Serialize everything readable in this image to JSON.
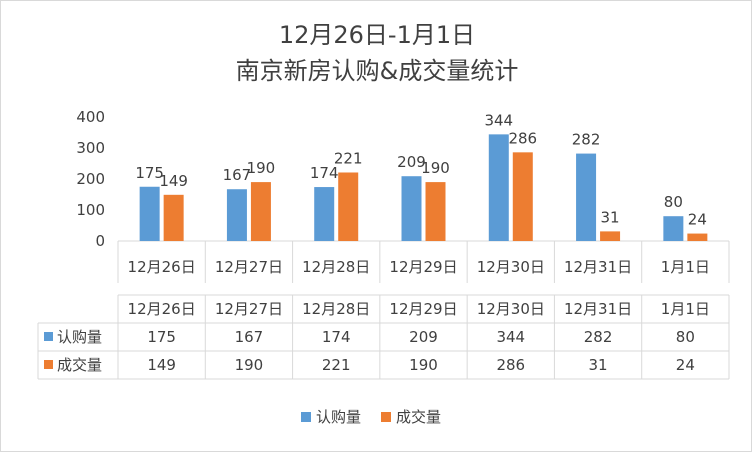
{
  "chart_data": {
    "type": "bar",
    "title_line1": "12月26日-1月1日",
    "title_line2": "南京新房认购&成交量统计",
    "categories": [
      "12月26日",
      "12月27日",
      "12月28日",
      "12月29日",
      "12月30日",
      "12月31日",
      "1月1日"
    ],
    "series": [
      {
        "name": "认购量",
        "color": "#5b9bd5",
        "values": [
          175,
          167,
          174,
          209,
          344,
          282,
          80
        ]
      },
      {
        "name": "成交量",
        "color": "#ed7d31",
        "values": [
          149,
          190,
          221,
          190,
          286,
          31,
          24
        ]
      }
    ],
    "y_ticks": [
      0,
      100,
      200,
      300,
      400
    ],
    "ylim": [
      0,
      400
    ],
    "grid": false,
    "legend_position": "bottom",
    "data_table": true
  }
}
